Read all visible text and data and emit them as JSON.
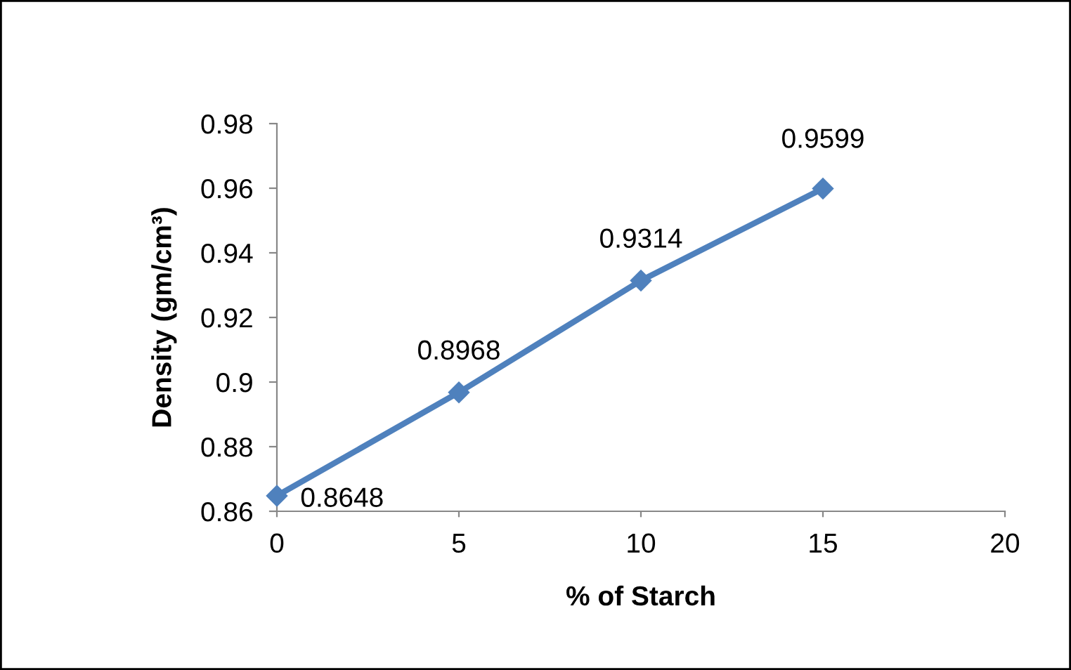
{
  "chart_data": {
    "type": "line",
    "xlabel": "% of Starch",
    "ylabel": "Density (gm/cm³)",
    "x": [
      0,
      5,
      10,
      15
    ],
    "series": [
      {
        "color": "#4f81bd",
        "values": [
          0.8648,
          0.8968,
          0.9314,
          0.9599
        ]
      }
    ],
    "xlim": [
      0,
      20
    ],
    "xticks": [
      0,
      5,
      10,
      15,
      20
    ],
    "ylim": [
      0.86,
      0.98
    ],
    "yticks": [
      0.86,
      0.88,
      0.9,
      0.92,
      0.94,
      0.96,
      0.98
    ],
    "data_labels": true,
    "marker": "diamond",
    "line_style": "solid",
    "grid": false,
    "legend": false
  }
}
